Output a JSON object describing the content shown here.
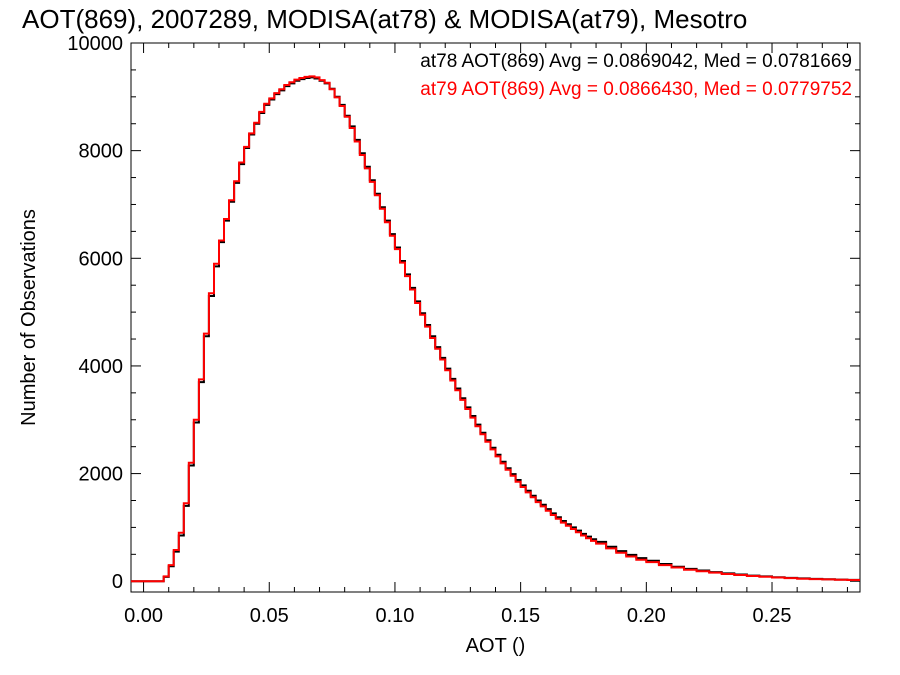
{
  "chart_data": {
    "type": "line",
    "title": "AOT(869), 2007289, MODISA(at78) & MODISA(at79), Mesotro",
    "xlabel": "AOT ()",
    "ylabel": "Number of Observations",
    "xlim": [
      -0.005,
      0.285
    ],
    "ylim": [
      -200,
      10000
    ],
    "xticks": [
      0.0,
      0.05,
      0.1,
      0.15,
      0.2,
      0.25
    ],
    "xtick_labels": [
      "0.00",
      "0.05",
      "0.10",
      "0.15",
      "0.20",
      "0.25"
    ],
    "yticks": [
      0,
      2000,
      4000,
      6000,
      8000,
      10000
    ],
    "ytick_labels": [
      "0",
      "2000",
      "4000",
      "6000",
      "8000",
      "10000"
    ],
    "grid": false,
    "legend_position": "top-right",
    "series": [
      {
        "name": "at78",
        "color": "#000000",
        "label": "at78 AOT(869) Avg = 0.0869042, Med = 0.0781669",
        "points": [
          [
            -0.005,
            0
          ],
          [
            0.006,
            0
          ],
          [
            0.008,
            80
          ],
          [
            0.01,
            280
          ],
          [
            0.012,
            550
          ],
          [
            0.014,
            850
          ],
          [
            0.016,
            1400
          ],
          [
            0.018,
            2150
          ],
          [
            0.02,
            2950
          ],
          [
            0.022,
            3700
          ],
          [
            0.024,
            4550
          ],
          [
            0.026,
            5300
          ],
          [
            0.028,
            5850
          ],
          [
            0.03,
            6300
          ],
          [
            0.032,
            6700
          ],
          [
            0.034,
            7050
          ],
          [
            0.036,
            7400
          ],
          [
            0.038,
            7750
          ],
          [
            0.04,
            8050
          ],
          [
            0.042,
            8300
          ],
          [
            0.044,
            8500
          ],
          [
            0.046,
            8700
          ],
          [
            0.048,
            8850
          ],
          [
            0.05,
            8950
          ],
          [
            0.052,
            9050
          ],
          [
            0.054,
            9120
          ],
          [
            0.056,
            9200
          ],
          [
            0.058,
            9250
          ],
          [
            0.06,
            9300
          ],
          [
            0.062,
            9330
          ],
          [
            0.064,
            9350
          ],
          [
            0.066,
            9360
          ],
          [
            0.068,
            9340
          ],
          [
            0.07,
            9300
          ],
          [
            0.072,
            9250
          ],
          [
            0.074,
            9150
          ],
          [
            0.076,
            9000
          ],
          [
            0.078,
            8850
          ],
          [
            0.08,
            8650
          ],
          [
            0.082,
            8450
          ],
          [
            0.084,
            8200
          ],
          [
            0.086,
            7950
          ],
          [
            0.088,
            7700
          ],
          [
            0.09,
            7450
          ],
          [
            0.092,
            7200
          ],
          [
            0.094,
            6950
          ],
          [
            0.096,
            6700
          ],
          [
            0.098,
            6450
          ],
          [
            0.1,
            6200
          ],
          [
            0.102,
            5950
          ],
          [
            0.104,
            5700
          ],
          [
            0.106,
            5450
          ],
          [
            0.108,
            5200
          ],
          [
            0.11,
            4980
          ],
          [
            0.112,
            4760
          ],
          [
            0.114,
            4550
          ],
          [
            0.116,
            4350
          ],
          [
            0.118,
            4150
          ],
          [
            0.12,
            3950
          ],
          [
            0.122,
            3760
          ],
          [
            0.124,
            3580
          ],
          [
            0.126,
            3400
          ],
          [
            0.128,
            3230
          ],
          [
            0.13,
            3070
          ],
          [
            0.132,
            2910
          ],
          [
            0.134,
            2760
          ],
          [
            0.136,
            2620
          ],
          [
            0.138,
            2480
          ],
          [
            0.14,
            2350
          ],
          [
            0.142,
            2220
          ],
          [
            0.144,
            2100
          ],
          [
            0.146,
            1990
          ],
          [
            0.148,
            1880
          ],
          [
            0.15,
            1780
          ],
          [
            0.152,
            1680
          ],
          [
            0.154,
            1590
          ],
          [
            0.156,
            1500
          ],
          [
            0.158,
            1420
          ],
          [
            0.16,
            1340
          ],
          [
            0.162,
            1260
          ],
          [
            0.164,
            1190
          ],
          [
            0.166,
            1120
          ],
          [
            0.168,
            1060
          ],
          [
            0.17,
            1000
          ],
          [
            0.172,
            940
          ],
          [
            0.174,
            880
          ],
          [
            0.176,
            830
          ],
          [
            0.178,
            780
          ],
          [
            0.18,
            730
          ],
          [
            0.184,
            640
          ],
          [
            0.188,
            560
          ],
          [
            0.192,
            490
          ],
          [
            0.196,
            430
          ],
          [
            0.2,
            380
          ],
          [
            0.205,
            320
          ],
          [
            0.21,
            270
          ],
          [
            0.215,
            230
          ],
          [
            0.22,
            200
          ],
          [
            0.225,
            170
          ],
          [
            0.23,
            145
          ],
          [
            0.235,
            125
          ],
          [
            0.24,
            105
          ],
          [
            0.245,
            90
          ],
          [
            0.25,
            75
          ],
          [
            0.255,
            62
          ],
          [
            0.26,
            52
          ],
          [
            0.265,
            44
          ],
          [
            0.27,
            37
          ],
          [
            0.275,
            30
          ],
          [
            0.28,
            25
          ],
          [
            0.285,
            20
          ]
        ]
      },
      {
        "name": "at79",
        "color": "#ff0000",
        "label": "at79 AOT(869) Avg = 0.0866430, Med = 0.0779752",
        "points": [
          [
            -0.005,
            0
          ],
          [
            0.006,
            0
          ],
          [
            0.008,
            90
          ],
          [
            0.01,
            300
          ],
          [
            0.012,
            580
          ],
          [
            0.014,
            900
          ],
          [
            0.016,
            1450
          ],
          [
            0.018,
            2200
          ],
          [
            0.02,
            3000
          ],
          [
            0.022,
            3750
          ],
          [
            0.024,
            4600
          ],
          [
            0.026,
            5350
          ],
          [
            0.028,
            5900
          ],
          [
            0.03,
            6330
          ],
          [
            0.032,
            6730
          ],
          [
            0.034,
            7080
          ],
          [
            0.036,
            7430
          ],
          [
            0.038,
            7780
          ],
          [
            0.04,
            8070
          ],
          [
            0.042,
            8320
          ],
          [
            0.044,
            8520
          ],
          [
            0.046,
            8720
          ],
          [
            0.048,
            8870
          ],
          [
            0.05,
            8970
          ],
          [
            0.052,
            9070
          ],
          [
            0.054,
            9140
          ],
          [
            0.056,
            9220
          ],
          [
            0.058,
            9270
          ],
          [
            0.06,
            9320
          ],
          [
            0.062,
            9350
          ],
          [
            0.064,
            9370
          ],
          [
            0.066,
            9380
          ],
          [
            0.068,
            9360
          ],
          [
            0.07,
            9310
          ],
          [
            0.072,
            9260
          ],
          [
            0.074,
            9140
          ],
          [
            0.076,
            8990
          ],
          [
            0.078,
            8830
          ],
          [
            0.08,
            8630
          ],
          [
            0.082,
            8420
          ],
          [
            0.084,
            8170
          ],
          [
            0.086,
            7920
          ],
          [
            0.088,
            7670
          ],
          [
            0.09,
            7420
          ],
          [
            0.092,
            7170
          ],
          [
            0.094,
            6920
          ],
          [
            0.096,
            6670
          ],
          [
            0.098,
            6420
          ],
          [
            0.1,
            6170
          ],
          [
            0.102,
            5920
          ],
          [
            0.104,
            5670
          ],
          [
            0.106,
            5420
          ],
          [
            0.108,
            5170
          ],
          [
            0.11,
            4950
          ],
          [
            0.112,
            4730
          ],
          [
            0.114,
            4520
          ],
          [
            0.116,
            4320
          ],
          [
            0.118,
            4120
          ],
          [
            0.12,
            3920
          ],
          [
            0.122,
            3730
          ],
          [
            0.124,
            3550
          ],
          [
            0.126,
            3370
          ],
          [
            0.128,
            3200
          ],
          [
            0.13,
            3040
          ],
          [
            0.132,
            2880
          ],
          [
            0.134,
            2730
          ],
          [
            0.136,
            2590
          ],
          [
            0.138,
            2450
          ],
          [
            0.14,
            2320
          ],
          [
            0.142,
            2190
          ],
          [
            0.144,
            2070
          ],
          [
            0.146,
            1960
          ],
          [
            0.148,
            1850
          ],
          [
            0.15,
            1750
          ],
          [
            0.152,
            1650
          ],
          [
            0.154,
            1560
          ],
          [
            0.156,
            1470
          ],
          [
            0.158,
            1390
          ],
          [
            0.16,
            1310
          ],
          [
            0.162,
            1230
          ],
          [
            0.164,
            1160
          ],
          [
            0.166,
            1090
          ],
          [
            0.168,
            1030
          ],
          [
            0.17,
            970
          ],
          [
            0.172,
            910
          ],
          [
            0.174,
            850
          ],
          [
            0.176,
            800
          ],
          [
            0.178,
            750
          ],
          [
            0.18,
            700
          ],
          [
            0.184,
            610
          ],
          [
            0.188,
            530
          ],
          [
            0.192,
            460
          ],
          [
            0.196,
            400
          ],
          [
            0.2,
            355
          ],
          [
            0.205,
            300
          ],
          [
            0.21,
            255
          ],
          [
            0.215,
            215
          ],
          [
            0.22,
            185
          ],
          [
            0.225,
            160
          ],
          [
            0.23,
            135
          ],
          [
            0.235,
            115
          ],
          [
            0.24,
            98
          ],
          [
            0.245,
            84
          ],
          [
            0.25,
            70
          ],
          [
            0.255,
            58
          ],
          [
            0.26,
            48
          ],
          [
            0.265,
            40
          ],
          [
            0.27,
            34
          ],
          [
            0.275,
            28
          ],
          [
            0.28,
            23
          ],
          [
            0.285,
            18
          ]
        ]
      }
    ]
  }
}
